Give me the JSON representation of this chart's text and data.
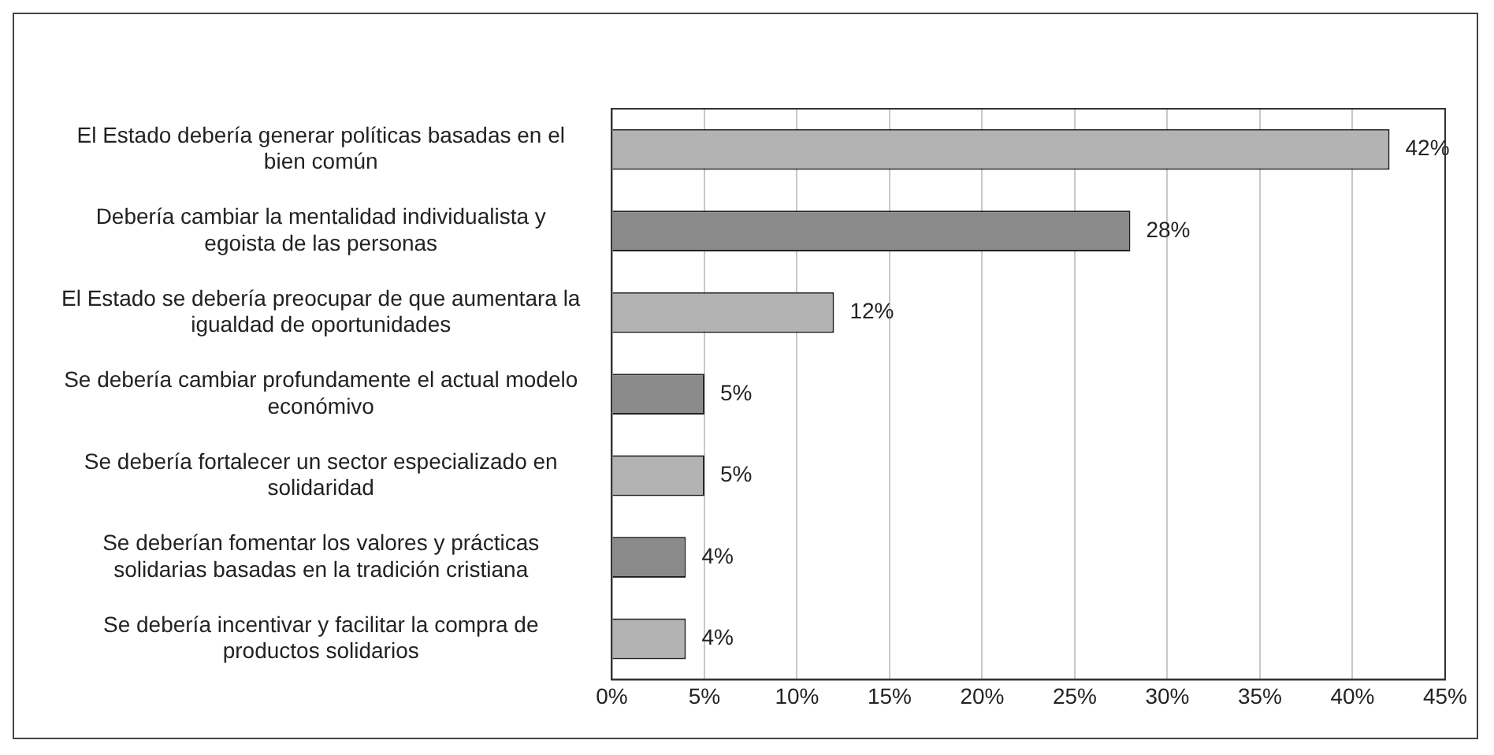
{
  "chart_data": {
    "type": "bar",
    "orientation": "horizontal",
    "categories": [
      "El Estado debería generar políticas basadas en el bien común",
      "Debería cambiar la mentalidad individualista y egoista de las personas",
      "El Estado se debería preocupar de que aumentara la igualdad de oportunidades",
      "Se debería cambiar profundamente el actual modelo económivo",
      "Se debería fortalecer un sector especializado en solidaridad",
      "Se deberían fomentar los valores y prácticas solidarias basadas en la tradición cristiana",
      "Se debería incentivar y facilitar la compra de productos solidarios"
    ],
    "values": [
      42,
      28,
      12,
      5,
      5,
      4,
      4
    ],
    "colors": [
      "#b3b3b3",
      "#8a8a8a",
      "#b3b3b3",
      "#8a8a8a",
      "#b3b3b3",
      "#8a8a8a",
      "#b3b3b3"
    ],
    "value_labels": [
      "42%",
      "28%",
      "12%",
      "5%",
      "5%",
      "4%",
      "4%"
    ],
    "xlim": [
      0,
      45
    ],
    "xticks": [
      {
        "value": 0,
        "label": "0%"
      },
      {
        "value": 5,
        "label": "5%"
      },
      {
        "value": 10,
        "label": "10%"
      },
      {
        "value": 15,
        "label": "15%"
      },
      {
        "value": 20,
        "label": "20%"
      },
      {
        "value": 25,
        "label": "25%"
      },
      {
        "value": 30,
        "label": "30%"
      },
      {
        "value": 35,
        "label": "35%"
      },
      {
        "value": 40,
        "label": "40%"
      },
      {
        "value": 45,
        "label": "45%"
      }
    ],
    "grid": "x",
    "legend": false
  }
}
